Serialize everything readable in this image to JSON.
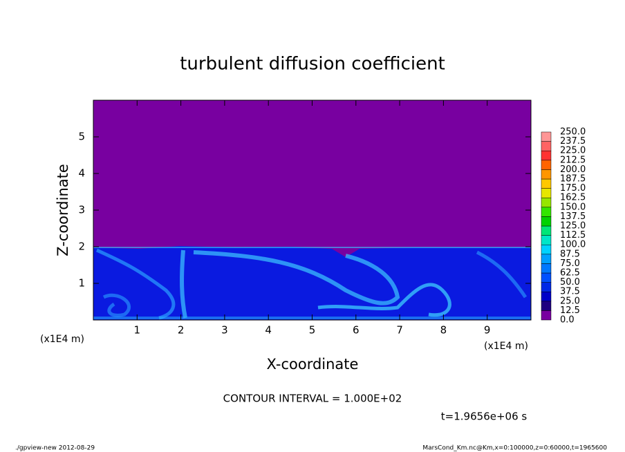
{
  "chart_data": {
    "type": "contour",
    "title": "turbulent diffusion coefficient",
    "xlabel": "X-coordinate",
    "ylabel": "Z-coordinate",
    "x_unit_label": "(x1E4 m)",
    "xlim": [
      0,
      10
    ],
    "xticks": [
      1,
      2,
      3,
      4,
      5,
      6,
      7,
      8,
      9
    ],
    "ylim": [
      0,
      6
    ],
    "yticks": [
      1,
      2,
      3,
      4,
      5
    ],
    "colorbar_ticks": [
      {
        "value": 0,
        "label": "0.0"
      },
      {
        "value": 12.5,
        "label": "12.5"
      },
      {
        "value": 25,
        "label": "25.0"
      },
      {
        "value": 37.5,
        "label": "37.5"
      },
      {
        "value": 50,
        "label": "50.0"
      },
      {
        "value": 62.5,
        "label": "62.5"
      },
      {
        "value": 75,
        "label": "75.0"
      },
      {
        "value": 87.5,
        "label": "87.5"
      },
      {
        "value": 100,
        "label": "100.0"
      },
      {
        "value": 112.5,
        "label": "112.5"
      },
      {
        "value": 125,
        "label": "125.0"
      },
      {
        "value": 137.5,
        "label": "137.5"
      },
      {
        "value": 150,
        "label": "150.0"
      },
      {
        "value": 162.5,
        "label": "162.5"
      },
      {
        "value": 175,
        "label": "175.0"
      },
      {
        "value": 187.5,
        "label": "187.5"
      },
      {
        "value": 200,
        "label": "200.0"
      },
      {
        "value": 212.5,
        "label": "212.5"
      },
      {
        "value": 225,
        "label": "225.0"
      },
      {
        "value": 237.5,
        "label": "237.5"
      },
      {
        "value": 250,
        "label": "250.0"
      }
    ],
    "colorbar_colors": [
      "#7800a0",
      "#1e0080",
      "#0000c8",
      "#0028e6",
      "#0050ff",
      "#0078ff",
      "#00a0ff",
      "#00d2ff",
      "#00e6c8",
      "#00e678",
      "#00d200",
      "#32e600",
      "#96e600",
      "#e6e600",
      "#ffc800",
      "#ff9600",
      "#ff6400",
      "#ff3232",
      "#ff6464",
      "#ff9696"
    ],
    "contour_interval": "CONTOUR INTERVAL = 1.000E+02",
    "time_label": "t=1.9656e+06 s",
    "footer_left": "./gpview-new  2012-08-29",
    "footer_right": "MarsCond_Km.nc@Km,x=0:100000,z=0:60000,t=1965600"
  }
}
